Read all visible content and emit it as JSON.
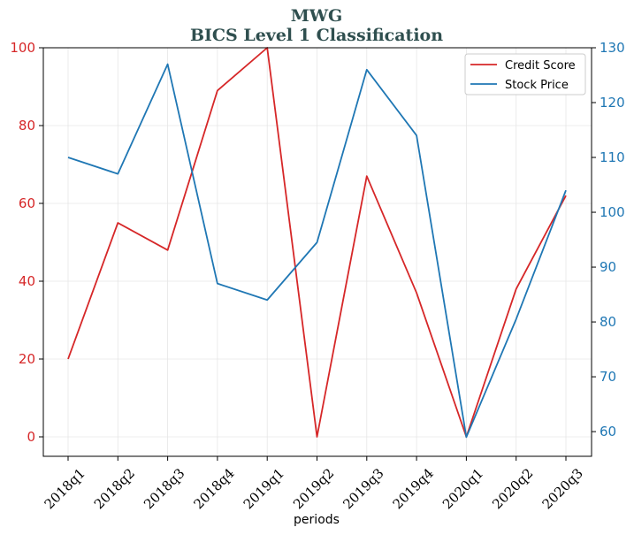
{
  "chart_data": {
    "type": "line",
    "title": "MWG",
    "subtitle": "BICS Level 1 Classification",
    "xlabel": "periods",
    "ylabel_left": "",
    "ylabel_right": "",
    "categories": [
      "2018q1",
      "2018q2",
      "2018q3",
      "2018q4",
      "2019q1",
      "2019q2",
      "2019q3",
      "2019q4",
      "2020q1",
      "2020q2",
      "2020q3"
    ],
    "left_axis": {
      "ylim": [
        -5,
        100
      ],
      "ticks": [
        0,
        20,
        40,
        60,
        80,
        100
      ],
      "color": "#d62728"
    },
    "right_axis": {
      "ylim": [
        55.5,
        130
      ],
      "ticks": [
        60,
        70,
        80,
        90,
        100,
        110,
        120,
        130
      ],
      "color": "#1f77b4"
    },
    "grid": true,
    "legend": "top-right",
    "series": [
      {
        "name": "Credit Score",
        "axis": "left",
        "color": "#d62728",
        "values": [
          20,
          55,
          48,
          89,
          100,
          0,
          67,
          37,
          0,
          38,
          62
        ]
      },
      {
        "name": "Stock Price",
        "axis": "right",
        "color": "#1f77b4",
        "values": [
          110,
          107,
          127,
          87,
          84,
          94.5,
          126,
          114,
          59,
          80.5,
          104
        ]
      }
    ]
  }
}
